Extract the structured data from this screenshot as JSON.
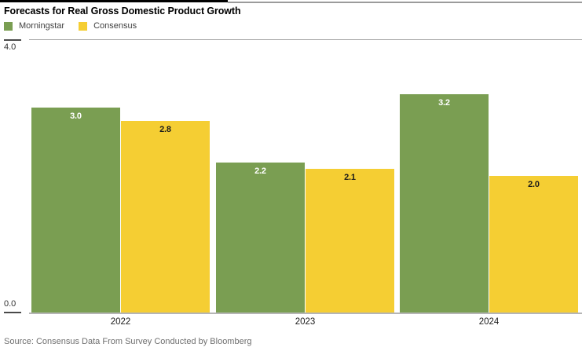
{
  "chart_data": {
    "type": "bar",
    "title": "Forecasts for Real Gross Domestic Product Growth",
    "categories": [
      "2022",
      "2023",
      "2024"
    ],
    "series": [
      {
        "name": "Morningstar",
        "color": "#7A9E52",
        "label_color": "#ffffff",
        "values": [
          3.0,
          2.2,
          3.2
        ]
      },
      {
        "name": "Consensus",
        "color": "#F5CE33",
        "label_color": "#1a1a1a",
        "values": [
          2.8,
          2.1,
          2.0
        ]
      }
    ],
    "y_axis": {
      "min": 0,
      "max": 4,
      "top_label": "4.0",
      "bottom_label": "0.0",
      "gridlines_shown": [
        "top",
        "bottom"
      ]
    },
    "legend_position": "top-left",
    "grid": "off-except-bounds",
    "value_labels": "inside-top",
    "source": "Source: Consensus Data From Survey Conducted by Bloomberg"
  },
  "colors": {
    "accent_bar": "#000000",
    "rule_gray": "#9b9b9b",
    "axis_gray": "#b5b5b5"
  }
}
